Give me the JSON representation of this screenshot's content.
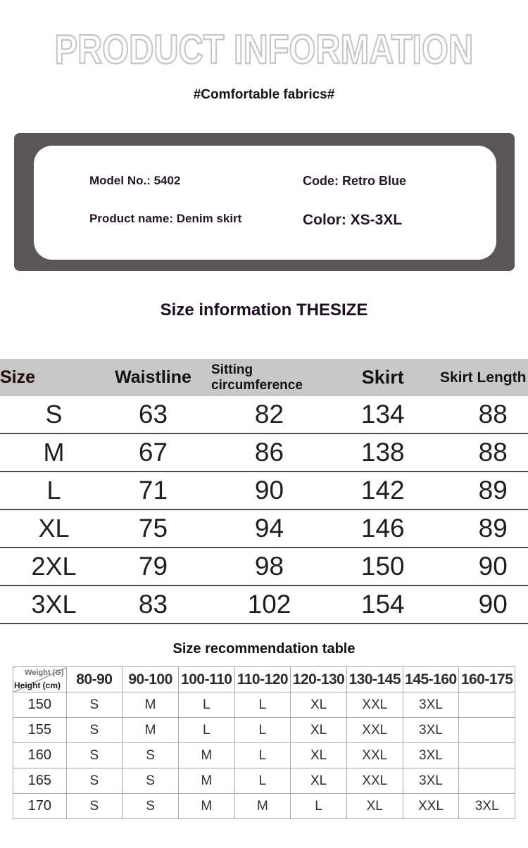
{
  "header": {
    "title": "PRODUCT INFORMATION",
    "tagline": "#Comfortable fabrics#"
  },
  "info_card": {
    "model": "Model No.: 5402",
    "code": "Code: Retro Blue",
    "product_name": "Product name: Denim skirt",
    "color": "Color: XS-3XL"
  },
  "size_table": {
    "heading": "Size information THESIZE",
    "columns": [
      "Size",
      "Waistline",
      "Sitting circumference",
      "Skirt",
      "Skirt Length"
    ],
    "rows": [
      [
        "S",
        "63",
        "82",
        "134",
        "88"
      ],
      [
        "M",
        "67",
        "86",
        "138",
        "88"
      ],
      [
        "L",
        "71",
        "90",
        "142",
        "89"
      ],
      [
        "XL",
        "75",
        "94",
        "146",
        "89"
      ],
      [
        "2XL",
        "79",
        "98",
        "150",
        "90"
      ],
      [
        "3XL",
        "83",
        "102",
        "154",
        "90"
      ]
    ]
  },
  "rec_table": {
    "heading": "Size recommendation table",
    "corner_top": "Weight (G)",
    "corner_bottom": "Height (cm)",
    "weight_columns": [
      "80-90",
      "90-100",
      "100-110",
      "110-120",
      "120-130",
      "130-145",
      "145-160",
      "160-175"
    ],
    "rows": [
      {
        "height": "150",
        "sizes": [
          "S",
          "M",
          "L",
          "L",
          "XL",
          "XXL",
          "3XL",
          ""
        ]
      },
      {
        "height": "155",
        "sizes": [
          "S",
          "M",
          "L",
          "L",
          "XL",
          "XXL",
          "3XL",
          ""
        ]
      },
      {
        "height": "160",
        "sizes": [
          "S",
          "S",
          "M",
          "L",
          "XL",
          "XXL",
          "3XL",
          ""
        ]
      },
      {
        "height": "165",
        "sizes": [
          "S",
          "S",
          "M",
          "L",
          "XL",
          "XXL",
          "3XL",
          ""
        ]
      },
      {
        "height": "170",
        "sizes": [
          "S",
          "S",
          "M",
          "M",
          "L",
          "XL",
          "XXL",
          "3XL"
        ]
      }
    ]
  },
  "colors": {
    "title_outline": "#c6c6c6",
    "info_box_bg": "#5a5657",
    "info_text": "#241624",
    "band_bg": "#c9c8c8",
    "table_text": "#1e1e1e",
    "row_border": "#4f4f4f",
    "rec_border": "#a9a9a9",
    "rec_text": "#303030",
    "weight_label_color": "#6e6e6e"
  }
}
